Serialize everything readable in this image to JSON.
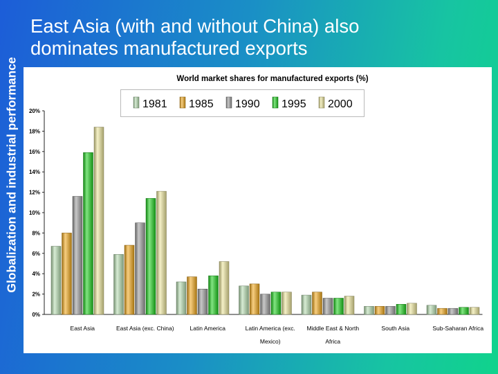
{
  "side_title": "Globalization and industrial performance",
  "title_lines": [
    "East Asia (with and without China) also",
    "dominates manufactured exports"
  ],
  "chart_data": {
    "type": "bar",
    "title": "World market shares for manufactured exports (%)",
    "categories": [
      [
        "East Asia"
      ],
      [
        "East Asia (exc. China)"
      ],
      [
        "Latin America"
      ],
      [
        "Latin America (exc.",
        "Mexico)"
      ],
      [
        "Middle East & North",
        "Africa"
      ],
      [
        "South Asia"
      ],
      [
        "Sub-Saharan Africa"
      ]
    ],
    "series": [
      {
        "name": "1981",
        "color": "#b6ddb0",
        "values": [
          6.7,
          5.9,
          3.2,
          2.8,
          1.9,
          0.8,
          0.9
        ]
      },
      {
        "name": "1985",
        "color": "#f2a81a",
        "values": [
          8.0,
          6.8,
          3.7,
          3.0,
          2.2,
          0.8,
          0.6
        ]
      },
      {
        "name": "1990",
        "color": "#9b9b9b",
        "values": [
          11.6,
          9.0,
          2.5,
          2.0,
          1.6,
          0.8,
          0.6
        ]
      },
      {
        "name": "1995",
        "color": "#1ccf1c",
        "values": [
          15.9,
          11.4,
          3.8,
          2.2,
          1.6,
          1.0,
          0.7
        ]
      },
      {
        "name": "2000",
        "color": "#ece59a",
        "values": [
          18.4,
          12.1,
          5.2,
          2.2,
          1.8,
          1.1,
          0.7
        ]
      }
    ],
    "y_ticks": [
      "0%",
      "2%",
      "4%",
      "6%",
      "8%",
      "10%",
      "12%",
      "14%",
      "16%",
      "18%",
      "20%"
    ],
    "ylim": [
      0,
      20
    ],
    "legend_position": "top",
    "grid": false
  }
}
